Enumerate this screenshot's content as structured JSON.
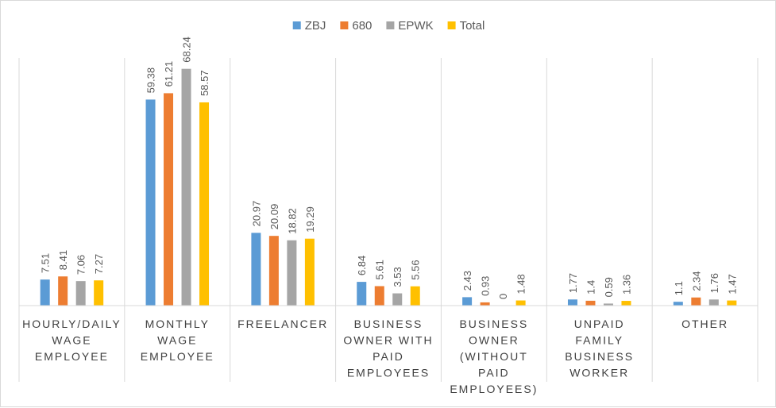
{
  "chart_data": {
    "type": "bar",
    "title": "",
    "xlabel": "",
    "ylabel": "",
    "ylim": [
      0,
      70
    ],
    "grid": false,
    "legend_position": "top-center",
    "categories": [
      "HOURLY/DAILY WAGE EMPLOYEE",
      "MONTHLY WAGE EMPLOYEE",
      "FREELANCER",
      "BUSINESS OWNER WITH PAID EMPLOYEES",
      "BUSINESS OWNER (WITHOUT PAID EMPLOYEES)",
      "UNPAID FAMILY BUSINESS WORKER",
      "OTHER"
    ],
    "category_lines": [
      [
        "HOURLY/DAILY",
        "WAGE",
        "EMPLOYEE"
      ],
      [
        "MONTHLY",
        "WAGE",
        "EMPLOYEE"
      ],
      [
        "FREELANCER"
      ],
      [
        "BUSINESS",
        "OWNER WITH",
        "PAID",
        "EMPLOYEES"
      ],
      [
        "BUSINESS",
        "OWNER",
        "(WITHOUT",
        "PAID",
        "EMPLOYEES)"
      ],
      [
        "UNPAID",
        "FAMILY",
        "BUSINESS",
        "WORKER"
      ],
      [
        "OTHER"
      ]
    ],
    "series": [
      {
        "name": "ZBJ",
        "color": "#5b9bd5",
        "values": [
          7.51,
          59.38,
          20.97,
          6.84,
          2.43,
          1.77,
          1.1
        ],
        "labels": [
          "7.51",
          "59.38",
          "20.97",
          "6.84",
          "2.43",
          "1.77",
          "1.1"
        ]
      },
      {
        "name": "680",
        "color": "#ed7d31",
        "values": [
          8.41,
          61.21,
          20.09,
          5.61,
          0.93,
          1.4,
          2.34
        ],
        "labels": [
          "8.41",
          "61.21",
          "20.09",
          "5.61",
          "0.93",
          "1.4",
          "2.34"
        ]
      },
      {
        "name": "EPWK",
        "color": "#a5a5a5",
        "values": [
          7.06,
          68.24,
          18.82,
          3.53,
          0,
          0.59,
          1.76
        ],
        "labels": [
          "7.06",
          "68.24",
          "18.82",
          "3.53",
          "0",
          "0.59",
          "1.76"
        ]
      },
      {
        "name": "Total",
        "color": "#ffc000",
        "values": [
          7.27,
          58.57,
          19.29,
          5.56,
          1.48,
          1.36,
          1.47
        ],
        "labels": [
          "7.27",
          "58.57",
          "19.29",
          "5.56",
          "1.48",
          "1.36",
          "1.47"
        ]
      }
    ]
  }
}
